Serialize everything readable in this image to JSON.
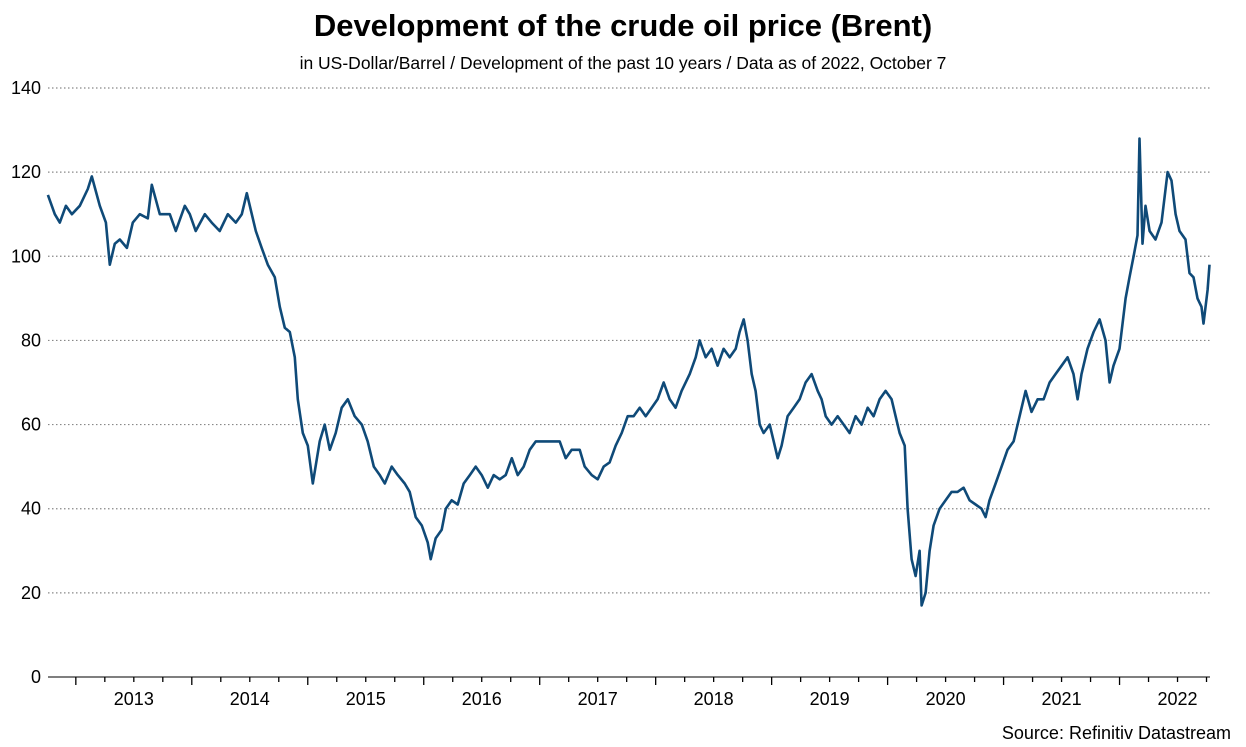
{
  "chart_data": {
    "type": "line",
    "title": "Development of the crude oil price (Brent)",
    "subtitle": "in US-Dollar/Barrel / Development of the past 10 years / Data as of 2022, October 7",
    "source": "Source: Refinitiv Datastream",
    "xlabel": "",
    "ylabel": "",
    "xlim": [
      2012.76,
      2022.78
    ],
    "ylim": [
      0,
      140
    ],
    "yticks": [
      0,
      20,
      40,
      60,
      80,
      100,
      120,
      140
    ],
    "xtick_labels": [
      "2013",
      "2014",
      "2015",
      "2016",
      "2017",
      "2018",
      "2019",
      "2020",
      "2021",
      "2022"
    ],
    "grid": "horizontal-dotted",
    "line_color": "#0f4a78",
    "series": [
      {
        "name": "Brent",
        "points": [
          [
            2012.759,
            114.6
          ],
          [
            2012.819,
            110
          ],
          [
            2012.862,
            108
          ],
          [
            2012.914,
            112
          ],
          [
            2012.966,
            110
          ],
          [
            2013.034,
            112
          ],
          [
            2013.103,
            116
          ],
          [
            2013.138,
            119
          ],
          [
            2013.207,
            112
          ],
          [
            2013.259,
            108
          ],
          [
            2013.293,
            98
          ],
          [
            2013.336,
            103
          ],
          [
            2013.379,
            104
          ],
          [
            2013.44,
            102
          ],
          [
            2013.491,
            108
          ],
          [
            2013.552,
            110
          ],
          [
            2013.621,
            109
          ],
          [
            2013.655,
            117
          ],
          [
            2013.724,
            110
          ],
          [
            2013.81,
            110
          ],
          [
            2013.862,
            106
          ],
          [
            2013.94,
            112
          ],
          [
            2013.983,
            110
          ],
          [
            2014.034,
            106
          ],
          [
            2014.112,
            110
          ],
          [
            2014.172,
            108
          ],
          [
            2014.241,
            106
          ],
          [
            2014.31,
            110
          ],
          [
            2014.379,
            108
          ],
          [
            2014.431,
            110
          ],
          [
            2014.474,
            115
          ],
          [
            2014.517,
            110
          ],
          [
            2014.552,
            106
          ],
          [
            2014.603,
            102
          ],
          [
            2014.655,
            98
          ],
          [
            2014.716,
            95
          ],
          [
            2014.759,
            88
          ],
          [
            2014.802,
            83
          ],
          [
            2014.845,
            82
          ],
          [
            2014.888,
            76
          ],
          [
            2014.914,
            66
          ],
          [
            2014.957,
            58
          ],
          [
            2015.0,
            55
          ],
          [
            2015.043,
            46
          ],
          [
            2015.103,
            56
          ],
          [
            2015.146,
            60
          ],
          [
            2015.19,
            54
          ],
          [
            2015.241,
            58
          ],
          [
            2015.293,
            64
          ],
          [
            2015.345,
            66
          ],
          [
            2015.405,
            62
          ],
          [
            2015.466,
            60
          ],
          [
            2015.517,
            56
          ],
          [
            2015.569,
            50
          ],
          [
            2015.621,
            48
          ],
          [
            2015.664,
            46
          ],
          [
            2015.724,
            50
          ],
          [
            2015.776,
            48
          ],
          [
            2015.836,
            46
          ],
          [
            2015.879,
            44
          ],
          [
            2015.931,
            38
          ],
          [
            2015.983,
            36
          ],
          [
            2016.034,
            32
          ],
          [
            2016.06,
            28
          ],
          [
            2016.103,
            33
          ],
          [
            2016.155,
            35
          ],
          [
            2016.19,
            40
          ],
          [
            2016.241,
            42
          ],
          [
            2016.293,
            41
          ],
          [
            2016.345,
            46
          ],
          [
            2016.397,
            48
          ],
          [
            2016.448,
            50
          ],
          [
            2016.5,
            48
          ],
          [
            2016.552,
            45
          ],
          [
            2016.603,
            48
          ],
          [
            2016.655,
            47
          ],
          [
            2016.707,
            48
          ],
          [
            2016.759,
            52
          ],
          [
            2016.81,
            48
          ],
          [
            2016.862,
            50
          ],
          [
            2016.914,
            54
          ],
          [
            2016.966,
            56
          ],
          [
            2017.043,
            56
          ],
          [
            2017.103,
            56
          ],
          [
            2017.172,
            56
          ],
          [
            2017.224,
            52
          ],
          [
            2017.276,
            54
          ],
          [
            2017.345,
            54
          ],
          [
            2017.388,
            50
          ],
          [
            2017.448,
            48
          ],
          [
            2017.5,
            47
          ],
          [
            2017.552,
            50
          ],
          [
            2017.603,
            51
          ],
          [
            2017.655,
            55
          ],
          [
            2017.707,
            58
          ],
          [
            2017.759,
            62
          ],
          [
            2017.81,
            62
          ],
          [
            2017.862,
            64
          ],
          [
            2017.914,
            62
          ],
          [
            2017.966,
            64
          ],
          [
            2018.017,
            66
          ],
          [
            2018.069,
            70
          ],
          [
            2018.121,
            66
          ],
          [
            2018.172,
            64
          ],
          [
            2018.224,
            68
          ],
          [
            2018.293,
            72
          ],
          [
            2018.345,
            76
          ],
          [
            2018.379,
            80
          ],
          [
            2018.431,
            76
          ],
          [
            2018.483,
            78
          ],
          [
            2018.534,
            74
          ],
          [
            2018.586,
            78
          ],
          [
            2018.638,
            76
          ],
          [
            2018.69,
            78
          ],
          [
            2018.724,
            82
          ],
          [
            2018.759,
            85
          ],
          [
            2018.793,
            80
          ],
          [
            2018.828,
            72
          ],
          [
            2018.862,
            68
          ],
          [
            2018.897,
            60
          ],
          [
            2018.931,
            58
          ],
          [
            2018.983,
            60
          ],
          [
            2019.026,
            55
          ],
          [
            2019.052,
            52
          ],
          [
            2019.086,
            55
          ],
          [
            2019.138,
            62
          ],
          [
            2019.19,
            64
          ],
          [
            2019.241,
            66
          ],
          [
            2019.293,
            70
          ],
          [
            2019.345,
            72
          ],
          [
            2019.397,
            68
          ],
          [
            2019.431,
            66
          ],
          [
            2019.466,
            62
          ],
          [
            2019.517,
            60
          ],
          [
            2019.569,
            62
          ],
          [
            2019.621,
            60
          ],
          [
            2019.672,
            58
          ],
          [
            2019.724,
            62
          ],
          [
            2019.776,
            60
          ],
          [
            2019.828,
            64
          ],
          [
            2019.879,
            62
          ],
          [
            2019.931,
            66
          ],
          [
            2019.983,
            68
          ],
          [
            2020.034,
            66
          ],
          [
            2020.069,
            62
          ],
          [
            2020.103,
            58
          ],
          [
            2020.147,
            55
          ],
          [
            2020.172,
            40
          ],
          [
            2020.207,
            28
          ],
          [
            2020.241,
            24
          ],
          [
            2020.276,
            30
          ],
          [
            2020.293,
            17
          ],
          [
            2020.328,
            20
          ],
          [
            2020.362,
            30
          ],
          [
            2020.397,
            36
          ],
          [
            2020.448,
            40
          ],
          [
            2020.5,
            42
          ],
          [
            2020.552,
            44
          ],
          [
            2020.603,
            44
          ],
          [
            2020.655,
            45
          ],
          [
            2020.707,
            42
          ],
          [
            2020.759,
            41
          ],
          [
            2020.81,
            40
          ],
          [
            2020.845,
            38
          ],
          [
            2020.879,
            42
          ],
          [
            2020.931,
            46
          ],
          [
            2020.983,
            50
          ],
          [
            2021.034,
            54
          ],
          [
            2021.086,
            56
          ],
          [
            2021.138,
            62
          ],
          [
            2021.19,
            68
          ],
          [
            2021.241,
            63
          ],
          [
            2021.293,
            66
          ],
          [
            2021.345,
            66
          ],
          [
            2021.397,
            70
          ],
          [
            2021.448,
            72
          ],
          [
            2021.5,
            74
          ],
          [
            2021.552,
            76
          ],
          [
            2021.603,
            72
          ],
          [
            2021.638,
            66
          ],
          [
            2021.672,
            72
          ],
          [
            2021.724,
            78
          ],
          [
            2021.776,
            82
          ],
          [
            2021.828,
            85
          ],
          [
            2021.879,
            80
          ],
          [
            2021.914,
            70
          ],
          [
            2021.948,
            74
          ],
          [
            2022.0,
            78
          ],
          [
            2022.052,
            90
          ],
          [
            2022.086,
            95
          ],
          [
            2022.121,
            100
          ],
          [
            2022.155,
            105
          ],
          [
            2022.172,
            128
          ],
          [
            2022.198,
            103
          ],
          [
            2022.224,
            112
          ],
          [
            2022.259,
            106
          ],
          [
            2022.31,
            104
          ],
          [
            2022.362,
            108
          ],
          [
            2022.414,
            120
          ],
          [
            2022.448,
            118
          ],
          [
            2022.483,
            110
          ],
          [
            2022.517,
            106
          ],
          [
            2022.569,
            104
          ],
          [
            2022.603,
            96
          ],
          [
            2022.638,
            95
          ],
          [
            2022.672,
            90
          ],
          [
            2022.707,
            88
          ],
          [
            2022.724,
            84
          ],
          [
            2022.759,
            92
          ],
          [
            2022.776,
            98
          ]
        ]
      }
    ]
  }
}
